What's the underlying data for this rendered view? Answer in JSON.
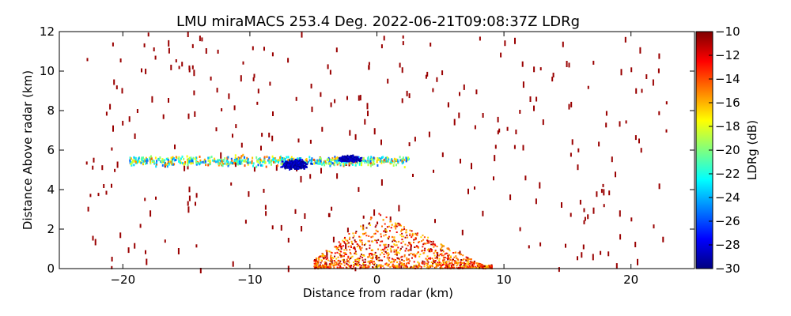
{
  "chart_data": {
    "type": "heatmap",
    "title": "LMU miraMACS 253.4 Deg. 2022-06-21T09:08:37Z  LDRg",
    "xlabel": "Distance from radar (km)",
    "ylabel": "Distance Above radar  (km)",
    "colorbar_label": "LDRg (dB)",
    "xlim": [
      -25,
      25
    ],
    "ylim": [
      0,
      12
    ],
    "clim": [
      -30,
      -10
    ],
    "x_ticks": [
      -20,
      -10,
      0,
      10,
      20
    ],
    "x_tick_labels": [
      "−20",
      "−10",
      "0",
      "10",
      "20"
    ],
    "y_ticks": [
      0,
      2,
      4,
      6,
      8,
      10,
      12
    ],
    "y_tick_labels": [
      "0",
      "2",
      "4",
      "6",
      "8",
      "10",
      "12"
    ],
    "colorbar_ticks": [
      -10,
      -12,
      -14,
      -16,
      -18,
      -20,
      -22,
      -24,
      -26,
      -28,
      -30
    ],
    "colorbar_tick_labels": [
      "−10",
      "−12",
      "−14",
      "−16",
      "−18",
      "−20",
      "−22",
      "−24",
      "−26",
      "−28",
      "−30"
    ],
    "colormap": [
      "#00007f",
      "#0000ff",
      "#007fff",
      "#00ffff",
      "#7fff7f",
      "#ffff00",
      "#ff7f00",
      "#ff0000",
      "#7f0000"
    ],
    "regions": [
      {
        "name": "cloud layer band",
        "x_range": [
          -19.5,
          2.5
        ],
        "y_center": 5.5,
        "y_spread": 0.35,
        "ldr_range": [
          -26,
          -14
        ]
      },
      {
        "name": "low-LDR patch left",
        "x_center": -6.5,
        "y_center": 5.3,
        "x_spread": 1.3,
        "y_spread": 0.3,
        "ldr": -29
      },
      {
        "name": "low-LDR patch right",
        "x_center": -2.2,
        "y_center": 5.6,
        "x_spread": 1.0,
        "y_spread": 0.2,
        "ldr": -29
      },
      {
        "name": "near-radar clutter",
        "x_range": [
          -5,
          9
        ],
        "y_range": [
          0,
          2.9
        ],
        "ldr_range": [
          -17,
          -10
        ]
      },
      {
        "name": "sparse scattered echoes",
        "x_range": [
          -23,
          23
        ],
        "y_range": [
          0,
          12
        ],
        "ldr": -10.5
      }
    ]
  }
}
